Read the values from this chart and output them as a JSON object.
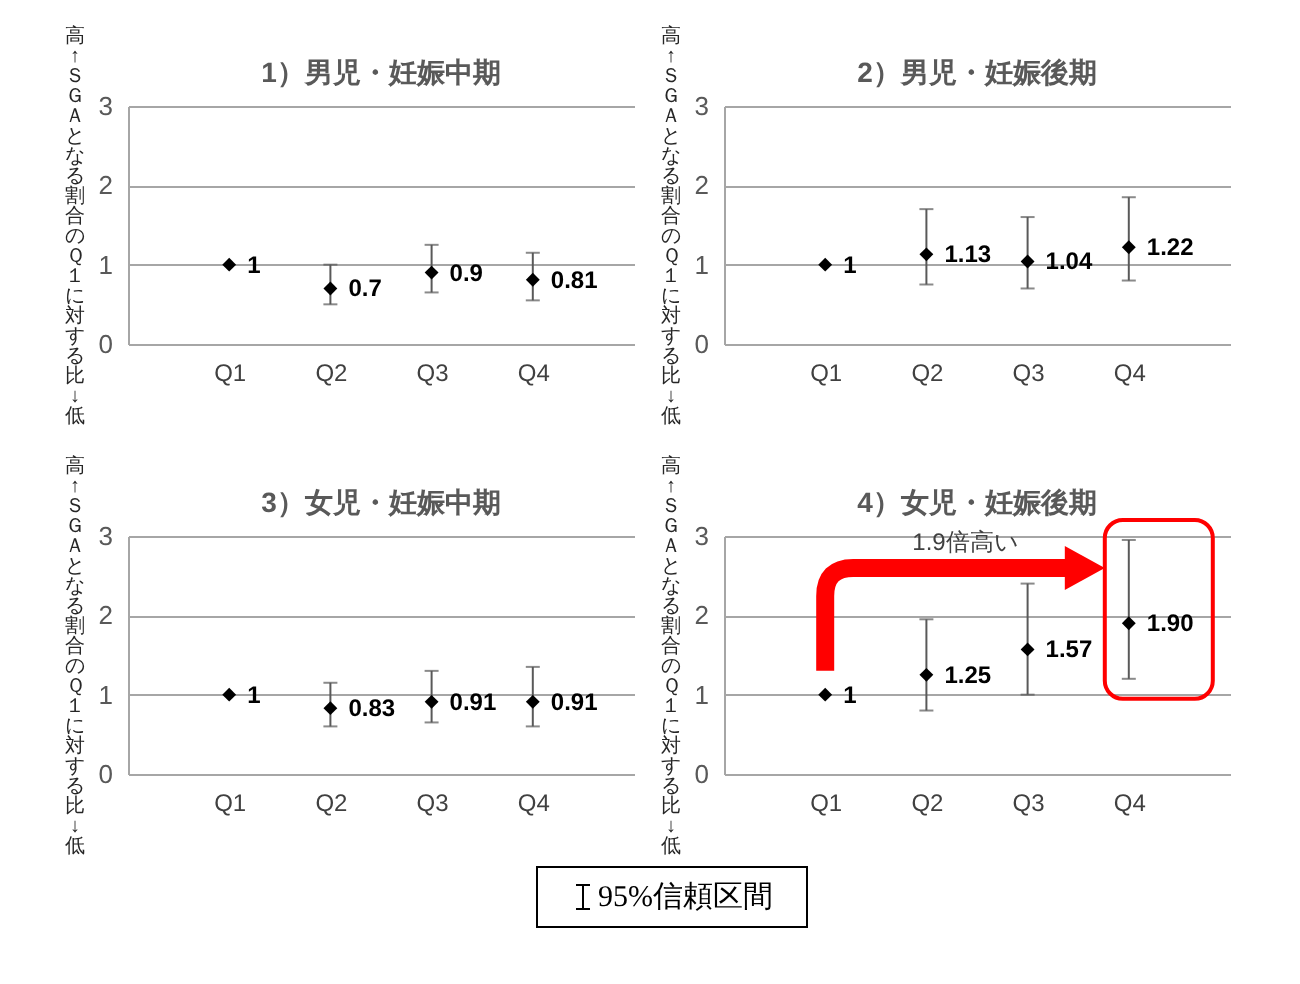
{
  "chart_data": [
    {
      "type": "scatter",
      "title": "1）男児・妊娠中期",
      "ylabel": "高↑ＳＧＡとなる割合のＱ１に対する比↓低",
      "categories": [
        "Q1",
        "Q2",
        "Q3",
        "Q4"
      ],
      "values": [
        1,
        0.7,
        0.9,
        0.81
      ],
      "errors": [
        null,
        [
          0.5,
          1.0
        ],
        [
          0.65,
          1.25
        ],
        [
          0.55,
          1.15
        ]
      ],
      "color": "#000000",
      "marker": "diamond",
      "data_labels": true,
      "ylim": [
        0,
        3
      ],
      "yticks": [
        0,
        1,
        2,
        3
      ],
      "grid": "y"
    },
    {
      "type": "scatter",
      "title": "2）男児・妊娠後期",
      "ylabel": "高↑ＳＧＡとなる割合のＱ１に対する比↓低",
      "categories": [
        "Q1",
        "Q2",
        "Q3",
        "Q4"
      ],
      "values": [
        1,
        1.13,
        1.04,
        1.22
      ],
      "errors": [
        null,
        [
          0.75,
          1.7
        ],
        [
          0.7,
          1.6
        ],
        [
          0.8,
          1.85
        ]
      ],
      "color": "#000000",
      "marker": "diamond",
      "data_labels": true,
      "ylim": [
        0,
        3
      ],
      "yticks": [
        0,
        1,
        2,
        3
      ],
      "grid": "y"
    },
    {
      "type": "scatter",
      "title": "3）女児・妊娠中期",
      "ylabel": "高↑ＳＧＡとなる割合のＱ１に対する比↓低",
      "categories": [
        "Q1",
        "Q2",
        "Q3",
        "Q4"
      ],
      "values": [
        1,
        0.83,
        0.91,
        0.91
      ],
      "errors": [
        null,
        [
          0.6,
          1.15
        ],
        [
          0.65,
          1.3
        ],
        [
          0.6,
          1.35
        ]
      ],
      "color": "#000000",
      "marker": "diamond",
      "data_labels": true,
      "ylim": [
        0,
        3
      ],
      "yticks": [
        0,
        1,
        2,
        3
      ],
      "grid": "y"
    },
    {
      "type": "scatter",
      "title": "4）女児・妊娠後期",
      "ylabel": "高↑ＳＧＡとなる割合のＱ１に対する比↓低",
      "categories": [
        "Q1",
        "Q2",
        "Q3",
        "Q4"
      ],
      "values": [
        1,
        1.25,
        1.57,
        1.9
      ],
      "value_labels": [
        "1",
        "1.25",
        "1.57",
        "1.90"
      ],
      "errors": [
        null,
        [
          0.8,
          1.95
        ],
        [
          1.0,
          2.4
        ],
        [
          1.2,
          2.95
        ]
      ],
      "color": "#000000",
      "marker": "diamond",
      "ylim": [
        0,
        3
      ],
      "yticks": [
        0,
        1,
        2,
        3
      ],
      "grid": "y",
      "annotations": [
        "1.9倍高い"
      ]
    },
    {
      "type": "other",
      "annotations": [
        "95%信頼区間"
      ]
    }
  ]
}
